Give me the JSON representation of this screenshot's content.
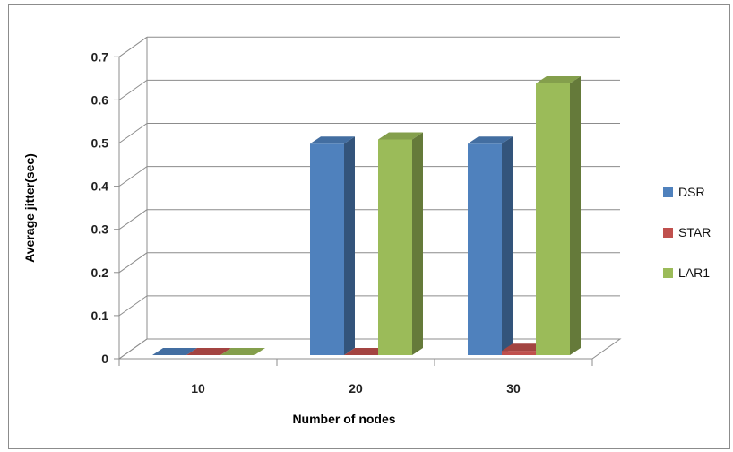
{
  "chart_data": {
    "type": "bar",
    "title": "",
    "xlabel": "Number of nodes",
    "ylabel": "Average jitter(sec)",
    "categories": [
      "10",
      "20",
      "30"
    ],
    "series": [
      {
        "name": "DSR",
        "values": [
          0.0,
          0.49,
          0.49
        ],
        "color": "#4F81BD"
      },
      {
        "name": "STAR",
        "values": [
          0.0,
          0.0,
          0.01
        ],
        "color": "#C0504D"
      },
      {
        "name": "LAR1",
        "values": [
          0.0,
          0.5,
          0.63
        ],
        "color": "#9BBB59"
      }
    ],
    "yticks": [
      "0",
      "0.1",
      "0.2",
      "0.3",
      "0.4",
      "0.5",
      "0.6",
      "0.7"
    ],
    "ylim": [
      0,
      0.7
    ],
    "grid": true,
    "legend": "right",
    "style": "3d-clustered-column"
  }
}
